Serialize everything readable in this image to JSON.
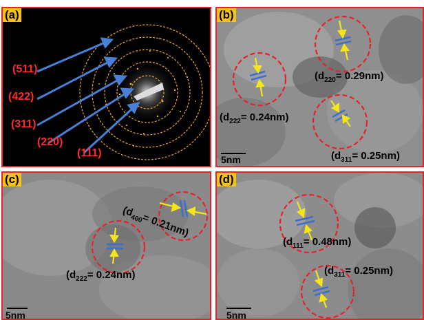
{
  "panels": {
    "a": {
      "label": "(a)",
      "rings": [
        "(511)",
        "(422)",
        "(311)",
        "(220)",
        "(111)"
      ]
    },
    "b": {
      "label": "(b)",
      "d1": {
        "sub": "220",
        "val": "= 0.29nm"
      },
      "d2": {
        "sub": "222",
        "val": "= 0.24nm"
      },
      "d3": {
        "sub": "311",
        "val": "= 0.25nm"
      },
      "scale": "5nm"
    },
    "c": {
      "label": "(c)",
      "d1": {
        "sub": "400",
        "val": "= 0.21nm"
      },
      "d2": {
        "sub": "222",
        "val": "= 0.24nm"
      },
      "scale": "5nm"
    },
    "d": {
      "label": "(d)",
      "d1": {
        "sub": "111",
        "val": "= 0.48nm"
      },
      "d2": {
        "sub": "311",
        "val": "= 0.25nm"
      },
      "scale": "5nm"
    }
  },
  "colors": {
    "border": "#e8202a",
    "label_bg": "#f6c21a",
    "ring": "#f0a830",
    "arrow": "#4a7fd6",
    "circle": "#e8202a",
    "yellow_arrow": "#f5e51a",
    "fringe": "#3a6fd0"
  }
}
